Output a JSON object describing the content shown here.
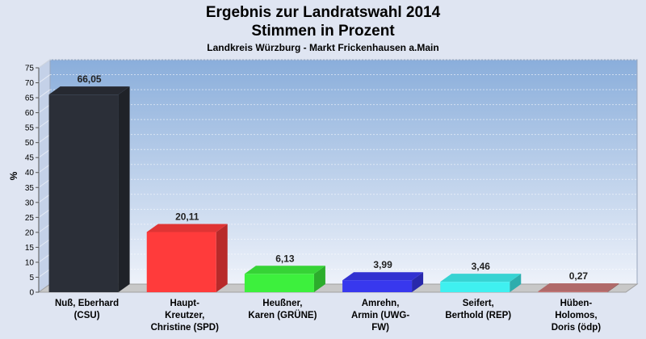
{
  "chart_data": {
    "type": "bar",
    "title": "Ergebnis zur Landratswahl 2014",
    "title2": "Stimmen in Prozent",
    "subtitle": "Landkreis Würzburg - Markt Frickenhausen a.Main",
    "ylabel": "%",
    "ylim": [
      0,
      75
    ],
    "yticks": [
      "0",
      "5",
      "10",
      "15",
      "20",
      "25",
      "30",
      "35",
      "40",
      "45",
      "50",
      "55",
      "60",
      "65",
      "70",
      "75"
    ],
    "categories": [
      [
        "Nuß, Eberhard",
        "(CSU)"
      ],
      [
        "Haupt-",
        "Kreutzer,",
        "Christine (SPD)"
      ],
      [
        "Heußner,",
        "Karen (GRÜNE)"
      ],
      [
        "Amrehn,",
        "Armin (UWG-",
        "FW)"
      ],
      [
        "Seifert,",
        "Berthold (REP)"
      ],
      [
        "Hüben-",
        "Holomos,",
        "Doris (ödp)"
      ]
    ],
    "values": [
      66.05,
      20.11,
      6.13,
      3.99,
      3.46,
      0.27
    ],
    "value_labels": [
      "66,05",
      "20,11",
      "6,13",
      "3,99",
      "3,46",
      "0,27"
    ],
    "colors": [
      "#2b2f38",
      "#ff3b3b",
      "#3df03d",
      "#3838ee",
      "#3ff0f0",
      "#c87878"
    ],
    "grid": true,
    "legend": "none"
  }
}
